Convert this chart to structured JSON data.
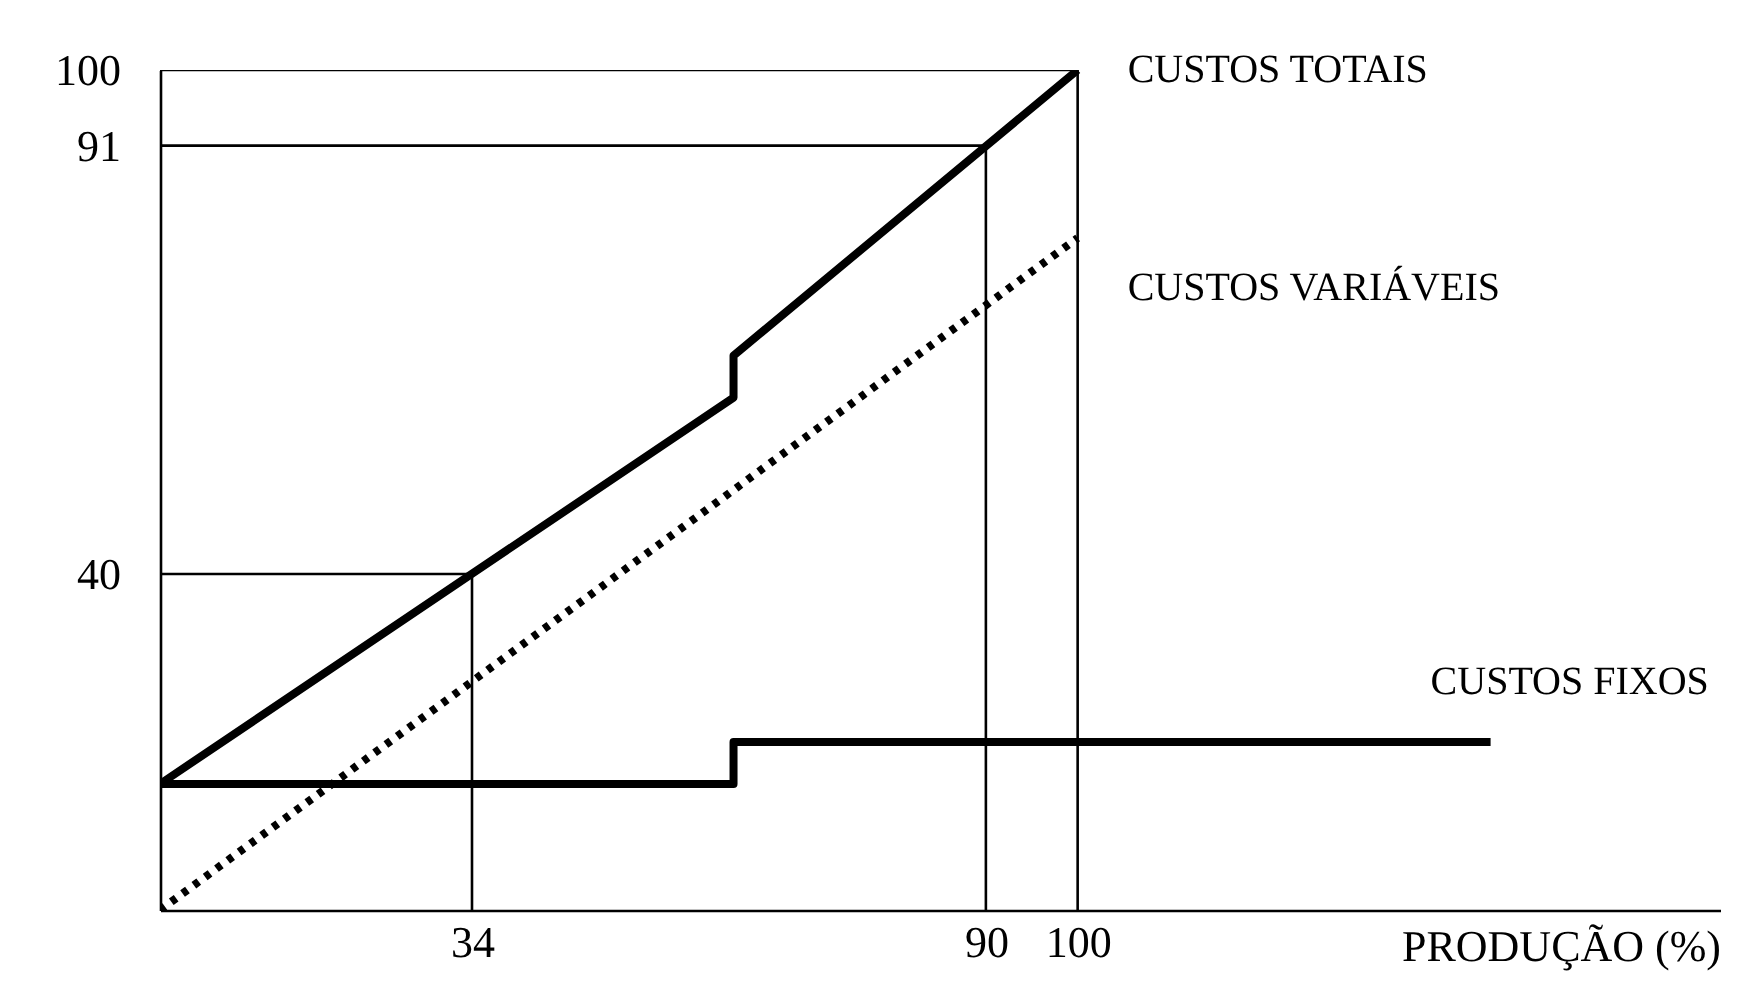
{
  "chart_data": {
    "type": "line",
    "xlabel": "PRODUÇÃO (%)",
    "xlim": [
      0,
      170
    ],
    "ylim": [
      0,
      100
    ],
    "xticks": [
      34,
      90,
      100
    ],
    "yticks": [
      40,
      91,
      100
    ],
    "grid": false,
    "marker": "none",
    "series": [
      {
        "name": "CUSTOS TOTAIS",
        "color": "#000000",
        "line_style": "solid",
        "x": [
          0,
          62.5,
          62.5,
          100
        ],
        "values": [
          15,
          61,
          66,
          100
        ]
      },
      {
        "name": "CUSTOS VARIÁVEIS",
        "color": "#000000",
        "line_style": "dotted",
        "x": [
          0,
          100
        ],
        "values": [
          0,
          80
        ]
      },
      {
        "name": "CUSTOS FIXOS",
        "color": "#000000",
        "line_style": "solid",
        "x": [
          0,
          62.5,
          62.5,
          145
        ],
        "values": [
          15,
          15,
          20,
          20
        ]
      },
      {
        "color": "#000000",
        "line_style": "solid",
        "x": [
          0,
          34,
          34
        ],
        "values": [
          40,
          40,
          0
        ]
      },
      {
        "color": "#000000",
        "line_style": "solid",
        "x": [
          0,
          90,
          90
        ],
        "values": [
          91,
          91,
          0
        ]
      },
      {
        "color": "#000000",
        "line_style": "solid",
        "x": [
          0,
          100,
          100
        ],
        "values": [
          100,
          100,
          0
        ]
      }
    ]
  }
}
